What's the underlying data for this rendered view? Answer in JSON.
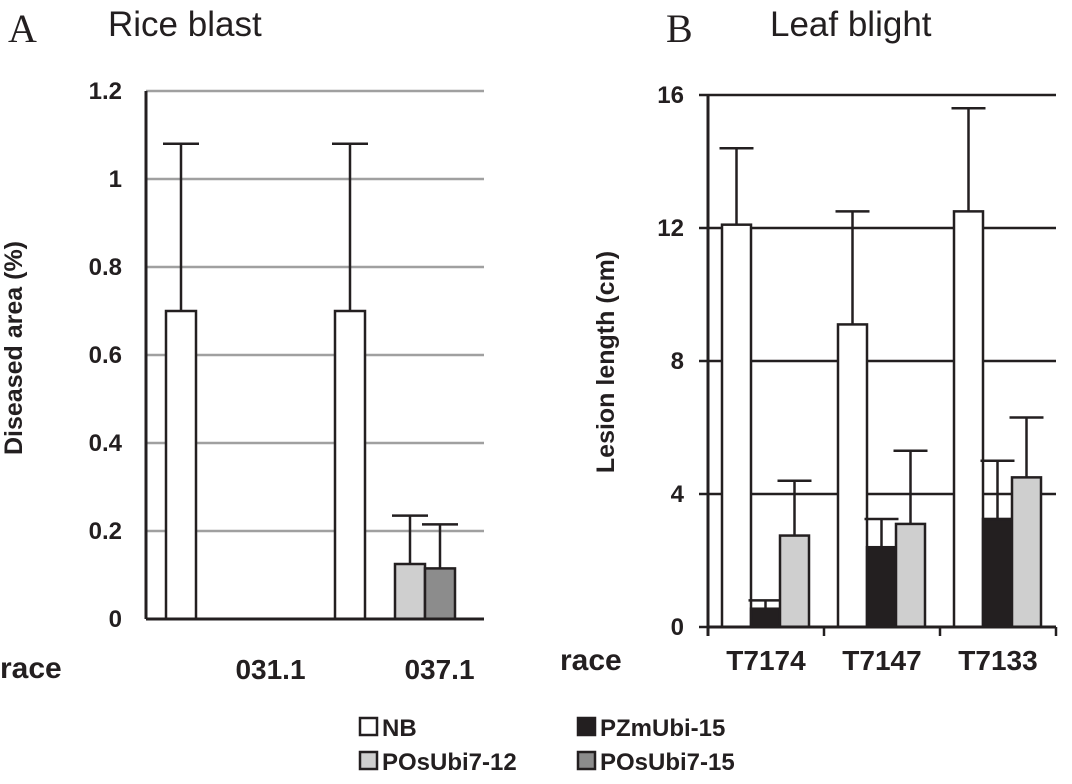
{
  "chart_data": [
    {
      "type": "bar",
      "panel_label": "A",
      "title": "Rice blast",
      "ylabel": "Diseased area (%)",
      "xlabel": "race",
      "ylim": [
        0,
        1.2
      ],
      "yticks": [
        "0",
        "0.2",
        "0.4",
        "0.6",
        "0.8",
        "1",
        "1.2"
      ],
      "grid": true,
      "categories": [
        "031.1",
        "037.1"
      ],
      "series": [
        {
          "name": "NB",
          "values": [
            0.7,
            0.7
          ],
          "errors": [
            0.38,
            0.38
          ]
        },
        {
          "name": "PZmUbi-15",
          "values": [
            0,
            0
          ],
          "errors": [
            0,
            0
          ]
        },
        {
          "name": "POsUbi7-12",
          "values": [
            0,
            0.125
          ],
          "errors": [
            0,
            0.11
          ]
        },
        {
          "name": "POsUbi7-15",
          "values": [
            0,
            0.115
          ],
          "errors": [
            0,
            0.1
          ]
        }
      ]
    },
    {
      "type": "bar",
      "panel_label": "B",
      "title": "Leaf blight",
      "ylabel": "Lesion length (cm)",
      "xlabel": "race",
      "ylim": [
        0,
        16
      ],
      "yticks": [
        "0",
        "4",
        "8",
        "12",
        "16"
      ],
      "grid": true,
      "categories": [
        "T7174",
        "T7147",
        "T7133"
      ],
      "series": [
        {
          "name": "NB",
          "values": [
            12.1,
            9.1,
            12.5
          ],
          "errors": [
            2.3,
            3.4,
            3.1
          ]
        },
        {
          "name": "PZmUbi-15",
          "values": [
            0.55,
            2.4,
            3.25
          ],
          "errors": [
            0.25,
            0.85,
            1.75
          ]
        },
        {
          "name": "POsUbi7-12",
          "values": [
            2.75,
            3.1,
            4.5
          ],
          "errors": [
            1.65,
            2.2,
            1.8
          ]
        }
      ]
    }
  ],
  "legend": {
    "placement": "bottom-center",
    "items": [
      {
        "label": "NB",
        "color": "#ffffff"
      },
      {
        "label": "PZmUbi-15",
        "color": "#231f20"
      },
      {
        "label": "POsUbi7-12",
        "color": "#cfcfcf"
      },
      {
        "label": "POsUbi7-15",
        "color": "#8c8c8c"
      }
    ]
  },
  "colors": {
    "NB": "#ffffff",
    "PZmUbi-15": "#231f20",
    "POsUbi7-12": "#cfcfcf",
    "POsUbi7-15": "#8c8c8c",
    "ink": "#231f20",
    "gridA": "#a0a0a0",
    "gridB": "#231f20"
  }
}
